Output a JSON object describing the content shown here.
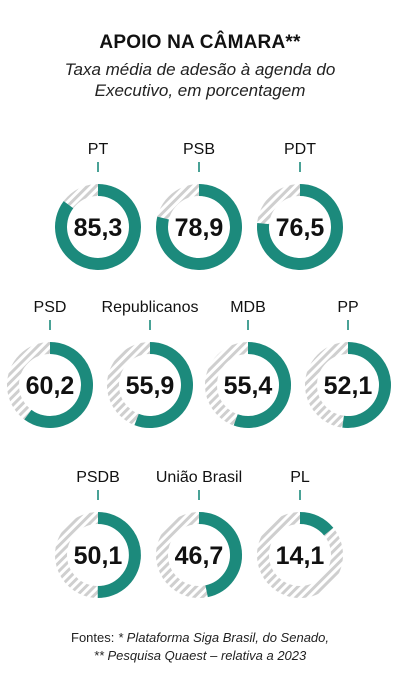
{
  "header": {
    "title": "APOIO NA CÂMARA**",
    "subtitle_line1": "Taxa média de adesão à agenda do",
    "subtitle_line2": "Executivo, em porcentagem"
  },
  "colors": {
    "ring": "#1c8a7c",
    "track_stripe": "#cfcfcf"
  },
  "chart_data": {
    "type": "donut",
    "unit": "%",
    "max": 100,
    "categories": [
      "PT",
      "PSB",
      "PDT",
      "PSD",
      "Republicanos",
      "MDB",
      "PP",
      "PSDB",
      "União Brasil",
      "PL"
    ],
    "values": [
      85.3,
      78.9,
      76.5,
      60.2,
      55.9,
      55.4,
      52.1,
      50.1,
      46.7,
      14.1
    ],
    "value_labels": [
      "85,3",
      "78,9",
      "76,5",
      "60,2",
      "55,9",
      "55,4",
      "52,1",
      "50,1",
      "46,7",
      "14,1"
    ]
  },
  "footer": {
    "sources_label": "Fontes:",
    "source1": "* Plataforma Siga Brasil, do Senado,",
    "source2": "** Pesquisa Quaest – relativa a 2023"
  }
}
